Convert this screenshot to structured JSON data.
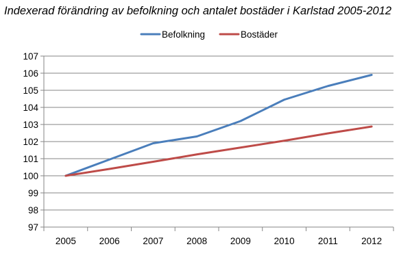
{
  "chart_data": {
    "type": "line",
    "title": "Indexerad förändring av befolkning och antalet bostäder i Karlstad 2005-2012",
    "xlabel": "",
    "ylabel": "",
    "categories": [
      "2005",
      "2006",
      "2007",
      "2008",
      "2009",
      "2010",
      "2011",
      "2012"
    ],
    "ylim": [
      97,
      107
    ],
    "yticks": [
      97,
      98,
      99,
      100,
      101,
      102,
      103,
      104,
      105,
      106,
      107
    ],
    "grid": true,
    "legend_position": "top",
    "series": [
      {
        "name": "Befolkning",
        "color": "#4A7EBB",
        "values": [
          100.0,
          100.95,
          101.9,
          102.3,
          103.2,
          104.45,
          105.25,
          105.9
        ]
      },
      {
        "name": "Bostäder",
        "color": "#BE4B48",
        "values": [
          100.0,
          100.4,
          100.82,
          101.25,
          101.65,
          102.05,
          102.48,
          102.88
        ]
      }
    ]
  }
}
